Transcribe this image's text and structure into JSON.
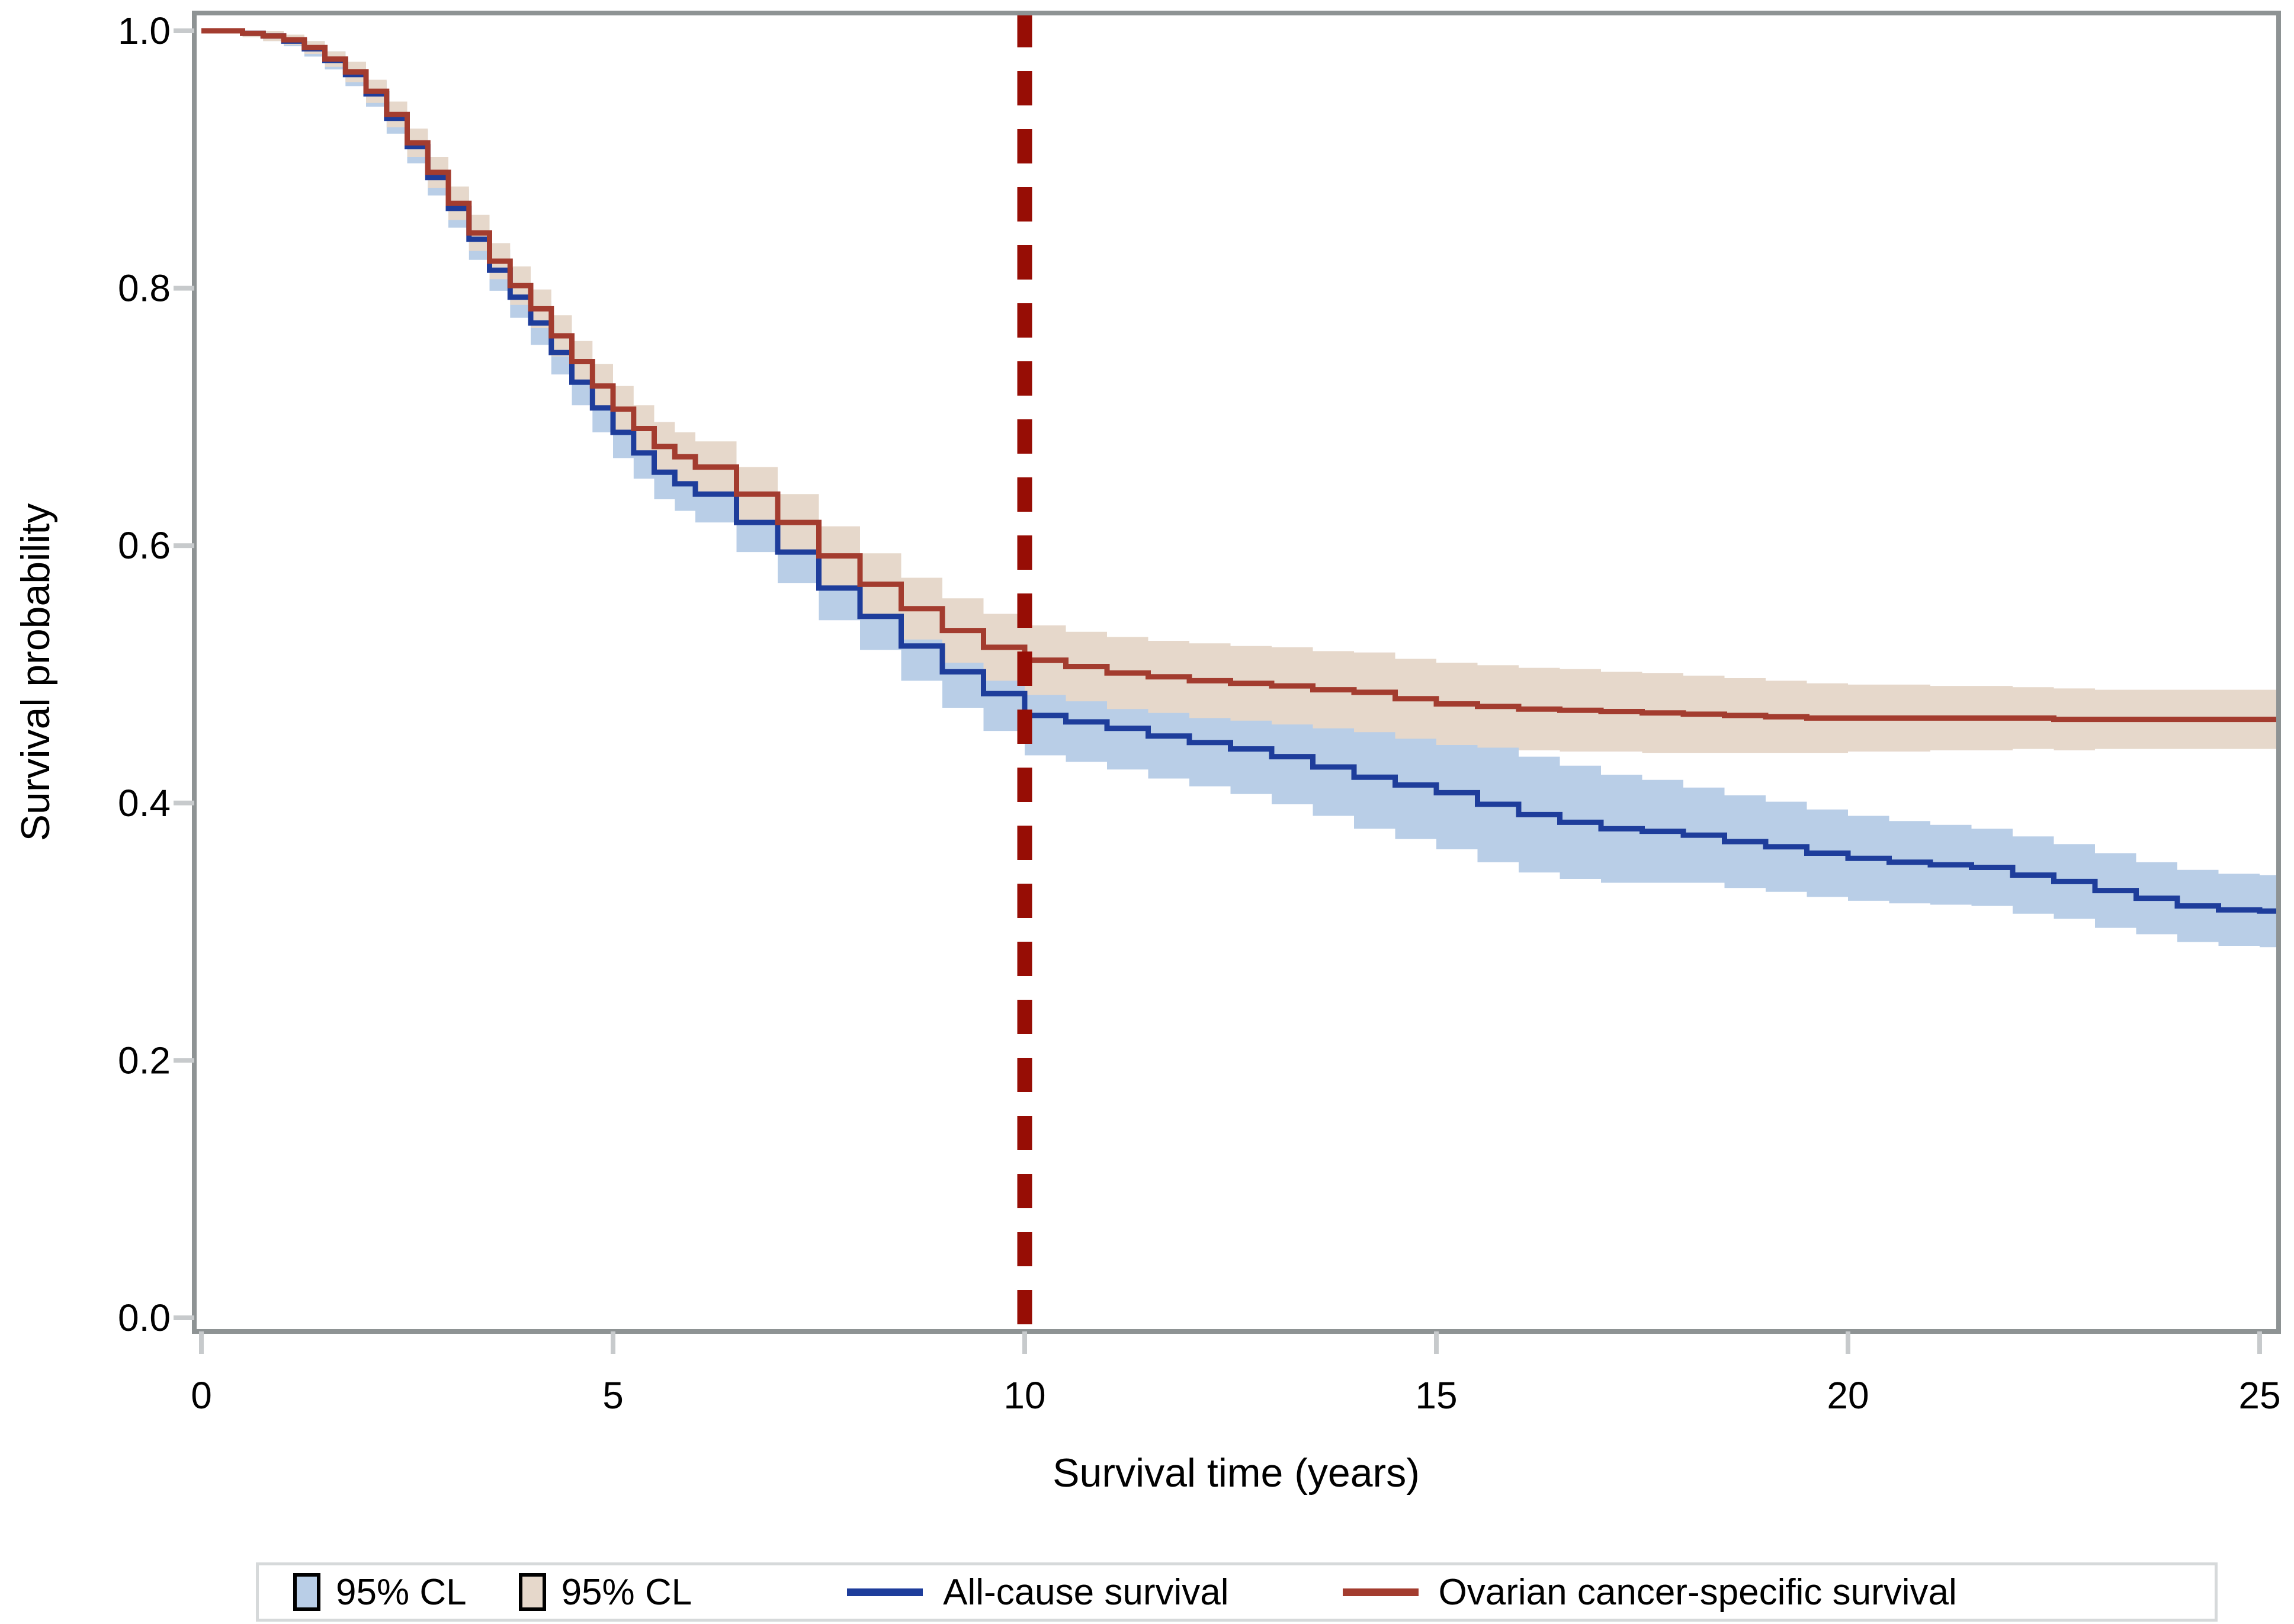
{
  "colors": {
    "background": "#FFFFFF",
    "frame": "#8E9394",
    "tick": "#C7CACC",
    "text": "#000000",
    "allcause_line": "#1E3D9B",
    "allcause_band": "#B9CEE7",
    "cancer_line": "#A33C2F",
    "cancer_band": "#E6D8CB",
    "reference_line": "#970D05",
    "legend_border": "#D6D9DA"
  },
  "chart_data": {
    "type": "line",
    "subtype": "kaplan-meier-step-with-confidence-bands",
    "title": "",
    "xlabel": "Survival time (years)",
    "ylabel": "Survival probability",
    "xlim": [
      0,
      25
    ],
    "ylim": [
      0,
      1
    ],
    "grid": false,
    "xticks": [
      0,
      5,
      10,
      15,
      20,
      25
    ],
    "xtick_labels": [
      "0",
      "5",
      "10",
      "15",
      "20",
      "25"
    ],
    "yticks": [
      0.0,
      0.2,
      0.4,
      0.6,
      0.8,
      1.0
    ],
    "ytick_labels": [
      "0.0",
      "0.2",
      "0.4",
      "0.6",
      "0.8",
      "1.0"
    ],
    "reference_line": {
      "x": 10,
      "style": "dashed",
      "color": "#970D05"
    },
    "legend": {
      "position": "bottom-center",
      "items": [
        {
          "type": "band-swatch",
          "label": "95% CL",
          "color": "#B9CEE7"
        },
        {
          "type": "band-swatch",
          "label": "95% CL",
          "color": "#E6D8CB"
        },
        {
          "type": "line",
          "label": "All-cause survival",
          "color": "#1E3D9B"
        },
        {
          "type": "line",
          "label": "Ovarian cancer-specific survival",
          "color": "#A33C2F"
        }
      ]
    },
    "series": [
      {
        "name": "All-cause survival",
        "color": "#1E3D9B",
        "band_color": "#B9CEE7",
        "band_label": "95% CL",
        "x": [
          0,
          0.5,
          0.75,
          1,
          1.25,
          1.5,
          1.75,
          2,
          2.25,
          2.5,
          2.75,
          3,
          3.25,
          3.5,
          3.75,
          4,
          4.25,
          4.5,
          4.75,
          5,
          5.25,
          5.5,
          5.75,
          6,
          6.5,
          7,
          7.5,
          8,
          8.5,
          9,
          9.5,
          10,
          10.5,
          11,
          11.5,
          12,
          12.5,
          13,
          13.5,
          14,
          14.5,
          15,
          15.5,
          16,
          16.5,
          17,
          17.5,
          18,
          18.5,
          19,
          19.5,
          20,
          20.5,
          21,
          21.5,
          22,
          22.5,
          23,
          23.5,
          24,
          24.5,
          25
        ],
        "y": [
          1,
          0.998,
          0.996,
          0.992,
          0.986,
          0.977,
          0.966,
          0.951,
          0.932,
          0.91,
          0.886,
          0.862,
          0.838,
          0.814,
          0.793,
          0.773,
          0.75,
          0.727,
          0.707,
          0.688,
          0.672,
          0.657,
          0.648,
          0.64,
          0.618,
          0.595,
          0.567,
          0.545,
          0.522,
          0.502,
          0.485,
          0.468,
          0.463,
          0.458,
          0.452,
          0.447,
          0.442,
          0.436,
          0.428,
          0.42,
          0.414,
          0.408,
          0.399,
          0.391,
          0.385,
          0.38,
          0.378,
          0.375,
          0.37,
          0.366,
          0.361,
          0.357,
          0.354,
          0.352,
          0.35,
          0.344,
          0.339,
          0.332,
          0.326,
          0.32,
          0.317,
          0.316
        ],
        "lower": [
          1,
          0.995,
          0.992,
          0.988,
          0.98,
          0.97,
          0.957,
          0.941,
          0.92,
          0.897,
          0.872,
          0.847,
          0.822,
          0.798,
          0.777,
          0.756,
          0.733,
          0.709,
          0.688,
          0.668,
          0.652,
          0.636,
          0.627,
          0.618,
          0.595,
          0.571,
          0.542,
          0.519,
          0.495,
          0.474,
          0.456,
          0.437,
          0.432,
          0.426,
          0.419,
          0.413,
          0.407,
          0.399,
          0.39,
          0.38,
          0.372,
          0.364,
          0.354,
          0.346,
          0.341,
          0.338,
          0.338,
          0.338,
          0.334,
          0.331,
          0.327,
          0.324,
          0.322,
          0.321,
          0.32,
          0.314,
          0.31,
          0.303,
          0.298,
          0.292,
          0.289,
          0.288
        ],
        "upper": [
          1,
          1,
          1,
          0.996,
          0.992,
          0.984,
          0.975,
          0.961,
          0.944,
          0.923,
          0.9,
          0.877,
          0.854,
          0.83,
          0.809,
          0.79,
          0.767,
          0.745,
          0.726,
          0.708,
          0.692,
          0.678,
          0.669,
          0.662,
          0.641,
          0.619,
          0.592,
          0.571,
          0.549,
          0.53,
          0.514,
          0.499,
          0.494,
          0.49,
          0.485,
          0.481,
          0.477,
          0.473,
          0.466,
          0.46,
          0.456,
          0.452,
          0.444,
          0.436,
          0.429,
          0.422,
          0.418,
          0.412,
          0.406,
          0.401,
          0.395,
          0.39,
          0.386,
          0.383,
          0.38,
          0.374,
          0.368,
          0.361,
          0.354,
          0.348,
          0.345,
          0.344
        ]
      },
      {
        "name": "Ovarian cancer-specific survival",
        "color": "#A33C2F",
        "band_color": "#E6D8CB",
        "band_label": "95% CL",
        "x": [
          0,
          0.5,
          0.75,
          1,
          1.25,
          1.5,
          1.75,
          2,
          2.25,
          2.5,
          2.75,
          3,
          3.25,
          3.5,
          3.75,
          4,
          4.25,
          4.5,
          4.75,
          5,
          5.25,
          5.5,
          5.75,
          6,
          6.5,
          7,
          7.5,
          8,
          8.5,
          9,
          9.5,
          10,
          10.5,
          11,
          11.5,
          12,
          12.5,
          13,
          13.5,
          14,
          14.5,
          15,
          15.5,
          16,
          16.5,
          17,
          17.5,
          18,
          18.5,
          19,
          19.5,
          20,
          20.5,
          21,
          21.5,
          22,
          22.5,
          23,
          23.5,
          24,
          24.5,
          25
        ],
        "y": [
          1,
          0.998,
          0.996,
          0.993,
          0.987,
          0.978,
          0.968,
          0.953,
          0.935,
          0.913,
          0.89,
          0.866,
          0.843,
          0.821,
          0.802,
          0.784,
          0.763,
          0.743,
          0.724,
          0.706,
          0.691,
          0.677,
          0.669,
          0.661,
          0.64,
          0.618,
          0.592,
          0.57,
          0.551,
          0.534,
          0.521,
          0.511,
          0.506,
          0.501,
          0.498,
          0.495,
          0.493,
          0.491,
          0.488,
          0.486,
          0.481,
          0.477,
          0.475,
          0.473,
          0.472,
          0.471,
          0.47,
          0.469,
          0.468,
          0.467,
          0.466,
          0.466,
          0.466,
          0.466,
          0.466,
          0.466,
          0.465,
          0.465,
          0.465,
          0.465,
          0.465,
          0.465
        ],
        "lower": [
          1,
          0.995,
          0.992,
          0.989,
          0.982,
          0.972,
          0.96,
          0.944,
          0.925,
          0.902,
          0.878,
          0.853,
          0.829,
          0.807,
          0.787,
          0.769,
          0.747,
          0.727,
          0.707,
          0.688,
          0.673,
          0.658,
          0.65,
          0.641,
          0.619,
          0.596,
          0.569,
          0.546,
          0.527,
          0.509,
          0.495,
          0.484,
          0.479,
          0.473,
          0.47,
          0.466,
          0.464,
          0.461,
          0.458,
          0.455,
          0.45,
          0.445,
          0.443,
          0.441,
          0.44,
          0.44,
          0.439,
          0.439,
          0.439,
          0.439,
          0.439,
          0.44,
          0.44,
          0.441,
          0.441,
          0.442,
          0.441,
          0.442,
          0.442,
          0.442,
          0.442,
          0.442
        ],
        "upper": [
          1,
          1,
          1,
          0.997,
          0.992,
          0.984,
          0.976,
          0.962,
          0.945,
          0.924,
          0.902,
          0.879,
          0.857,
          0.835,
          0.817,
          0.799,
          0.779,
          0.759,
          0.741,
          0.724,
          0.709,
          0.696,
          0.688,
          0.681,
          0.661,
          0.64,
          0.615,
          0.594,
          0.575,
          0.559,
          0.547,
          0.538,
          0.533,
          0.529,
          0.526,
          0.524,
          0.522,
          0.521,
          0.518,
          0.517,
          0.512,
          0.509,
          0.507,
          0.505,
          0.504,
          0.502,
          0.501,
          0.499,
          0.497,
          0.495,
          0.493,
          0.492,
          0.492,
          0.491,
          0.491,
          0.49,
          0.489,
          0.488,
          0.488,
          0.488,
          0.488,
          0.488
        ]
      }
    ]
  }
}
